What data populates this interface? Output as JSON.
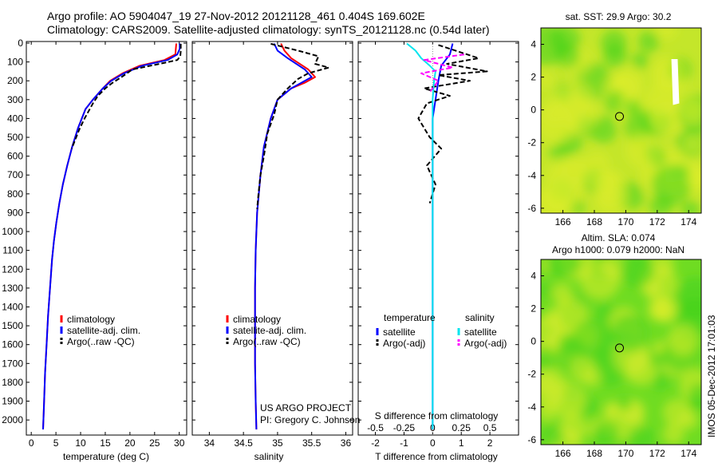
{
  "header": {
    "title_line1": "Argo profile: AO 5904047_19 27-Nov-2012 20121128_461 0.404S 169.602E",
    "title_line2": "Climatology: CARS2009. Satellite-adjusted climatology: synTS_20121128.nc (0.54d later)"
  },
  "colors": {
    "climatology": "#ff0000",
    "satellite_adj": "#0000ff",
    "argo": "#000000",
    "salinity_satellite": "#00e5ee",
    "salinity_argo": "#ff00ff",
    "map_green": "#3fd21c",
    "map_yellow": "#dcec2a"
  },
  "side_stamp": "IMOS 05-Dec-2012 17:01:03",
  "credit": {
    "line1": "US ARGO PROJECT",
    "line2": "PI: Gregory C. Johnson"
  },
  "chart_data": [
    {
      "type": "line",
      "name": "temperature-panel",
      "xlabel": "temperature (deg C)",
      "ylabel": "",
      "xlim": [
        -1,
        31.5
      ],
      "ylim": [
        2080,
        0
      ],
      "xticks": [
        0,
        5,
        10,
        15,
        20,
        25,
        30
      ],
      "yticks": [
        0,
        100,
        200,
        300,
        400,
        500,
        600,
        700,
        800,
        900,
        1000,
        1100,
        1200,
        1300,
        1400,
        1500,
        1600,
        1700,
        1800,
        1900,
        2000
      ],
      "legend": [
        "climatology",
        "satellite-adj. clim.",
        "Argo(..raw -QC)"
      ],
      "legend_position": "lower-center",
      "series": [
        {
          "name": "climatology",
          "color": "#ff0000",
          "style": "solid",
          "points": [
            [
              29.4,
              2
            ],
            [
              29.3,
              30
            ],
            [
              29.2,
              60
            ],
            [
              27,
              90
            ],
            [
              22,
              120
            ],
            [
              18.5,
              160
            ],
            [
              16,
              200
            ],
            [
              14.5,
              240
            ],
            [
              12.5,
              300
            ],
            [
              11,
              350
            ],
            [
              9.5,
              450
            ],
            [
              8.3,
              550
            ],
            [
              7.3,
              650
            ],
            [
              6.4,
              750
            ],
            [
              5.7,
              850
            ],
            [
              5.1,
              950
            ],
            [
              4.6,
              1050
            ],
            [
              4.2,
              1150
            ],
            [
              3.8,
              1300
            ],
            [
              3.4,
              1450
            ],
            [
              3.1,
              1600
            ],
            [
              2.8,
              1750
            ],
            [
              2.6,
              1900
            ],
            [
              2.4,
              2050
            ]
          ]
        },
        {
          "name": "satellite-adj. clim.",
          "color": "#0000ff",
          "style": "solid",
          "points": [
            [
              30.1,
              2
            ],
            [
              30.1,
              30
            ],
            [
              29.6,
              60
            ],
            [
              27.6,
              90
            ],
            [
              22.5,
              120
            ],
            [
              18.8,
              160
            ],
            [
              16.2,
              200
            ],
            [
              14.5,
              240
            ],
            [
              12.5,
              300
            ],
            [
              11,
              350
            ],
            [
              9.5,
              450
            ],
            [
              8.3,
              550
            ],
            [
              7.3,
              650
            ],
            [
              6.4,
              750
            ],
            [
              5.7,
              850
            ],
            [
              5.1,
              950
            ],
            [
              4.6,
              1050
            ],
            [
              4.2,
              1150
            ],
            [
              3.8,
              1300
            ],
            [
              3.4,
              1450
            ],
            [
              3.1,
              1600
            ],
            [
              2.8,
              1750
            ],
            [
              2.6,
              1900
            ],
            [
              2.4,
              2050
            ]
          ]
        },
        {
          "name": "Argo(..raw -QC)",
          "color": "#000000",
          "style": "dashed",
          "points": [
            [
              30.3,
              4
            ],
            [
              30.3,
              40
            ],
            [
              30.2,
              70
            ],
            [
              29.6,
              90
            ],
            [
              26,
              110
            ],
            [
              20.5,
              140
            ],
            [
              18.3,
              180
            ],
            [
              16.5,
              210
            ],
            [
              15,
              240
            ],
            [
              13.5,
              280
            ],
            [
              12.5,
              320
            ],
            [
              10.8,
              400
            ],
            [
              9.7,
              460
            ],
            [
              8.2,
              560
            ]
          ]
        }
      ]
    },
    {
      "type": "line",
      "name": "salinity-panel",
      "xlabel": "salinity",
      "ylabel": "",
      "xlim": [
        33.75,
        36.1
      ],
      "ylim": [
        2080,
        0
      ],
      "xticks": [
        34,
        34.5,
        35,
        35.5,
        36
      ],
      "legend": [
        "climatology",
        "satellite-adj. clim.",
        "Argo(..raw -QC)"
      ],
      "legend_position": "lower-center",
      "series": [
        {
          "name": "climatology",
          "color": "#ff0000",
          "style": "solid",
          "points": [
            [
              35.05,
              2
            ],
            [
              35.1,
              40
            ],
            [
              35.2,
              80
            ],
            [
              35.45,
              140
            ],
            [
              35.55,
              180
            ],
            [
              35.4,
              210
            ],
            [
              35.2,
              240
            ],
            [
              35.0,
              300
            ],
            [
              34.9,
              400
            ],
            [
              34.8,
              550
            ],
            [
              34.75,
              700
            ],
            [
              34.7,
              900
            ],
            [
              34.68,
              1100
            ],
            [
              34.67,
              1300
            ],
            [
              34.67,
              1500
            ],
            [
              34.67,
              1700
            ],
            [
              34.68,
              1900
            ],
            [
              34.69,
              2050
            ]
          ]
        },
        {
          "name": "satellite-adj. clim.",
          "color": "#0000ff",
          "style": "solid",
          "points": [
            [
              34.95,
              2
            ],
            [
              35.0,
              40
            ],
            [
              35.15,
              80
            ],
            [
              35.4,
              140
            ],
            [
              35.5,
              180
            ],
            [
              35.35,
              210
            ],
            [
              35.2,
              240
            ],
            [
              35.0,
              300
            ],
            [
              34.9,
              400
            ],
            [
              34.8,
              550
            ],
            [
              34.75,
              700
            ],
            [
              34.7,
              900
            ],
            [
              34.68,
              1100
            ],
            [
              34.67,
              1300
            ],
            [
              34.67,
              1500
            ],
            [
              34.67,
              1700
            ],
            [
              34.68,
              1900
            ],
            [
              34.69,
              2050
            ]
          ]
        },
        {
          "name": "Argo(..raw -QC)",
          "color": "#000000",
          "style": "dashed",
          "points": [
            [
              34.9,
              4
            ],
            [
              35.3,
              40
            ],
            [
              35.6,
              70
            ],
            [
              35.55,
              110
            ],
            [
              35.75,
              130
            ],
            [
              35.45,
              160
            ],
            [
              35.3,
              190
            ],
            [
              35.15,
              240
            ],
            [
              35.0,
              300
            ],
            [
              34.95,
              380
            ],
            [
              34.85,
              480
            ],
            [
              34.8,
              600
            ],
            [
              34.75,
              700
            ],
            [
              34.72,
              800
            ],
            [
              34.7,
              880
            ]
          ]
        }
      ]
    },
    {
      "type": "line",
      "name": "difference-panel",
      "xlabel": "T difference from climatology",
      "xlabel_top": "S difference from climatology",
      "ylabel": "",
      "xlim": [
        -2.6,
        3.0
      ],
      "ylim": [
        2080,
        0
      ],
      "xticks": [
        -2,
        -1,
        0,
        1,
        2
      ],
      "xticks_s": [
        -0.5,
        -0.25,
        0,
        0.25,
        0.5
      ],
      "legend_headers": [
        "temperature",
        "salinity"
      ],
      "legend": [
        "satellite",
        "Argo(-adj)",
        "satellite",
        "Argo(-adj)"
      ],
      "legend_position": "lower-center",
      "series": [
        {
          "name": "satellite",
          "group": "temperature",
          "color": "#0000ff",
          "style": "solid",
          "points": [
            [
              0.7,
              2
            ],
            [
              0.6,
              60
            ],
            [
              0.3,
              120
            ],
            [
              0.2,
              200
            ],
            [
              0.1,
              300
            ],
            [
              0,
              400
            ],
            [
              0,
              600
            ],
            [
              0,
              900
            ],
            [
              0,
              1300
            ],
            [
              0,
              1700
            ],
            [
              0,
              2050
            ]
          ]
        },
        {
          "name": "Argo(-adj)",
          "group": "temperature",
          "color": "#000000",
          "style": "dashed",
          "points": [
            [
              0.2,
              10
            ],
            [
              0.8,
              40
            ],
            [
              1.6,
              80
            ],
            [
              0.5,
              110
            ],
            [
              1.9,
              150
            ],
            [
              0.2,
              170
            ],
            [
              1.3,
              200
            ],
            [
              -0.3,
              240
            ],
            [
              0.6,
              280
            ],
            [
              -0.2,
              320
            ],
            [
              -0.5,
              400
            ],
            [
              -0.1,
              500
            ],
            [
              0.3,
              560
            ],
            [
              -0.2,
              650
            ],
            [
              0.1,
              750
            ],
            [
              -0.1,
              850
            ]
          ]
        },
        {
          "name": "satellite",
          "group": "salinity",
          "color": "#00e5ee",
          "style": "solid",
          "points": [
            [
              -0.9,
              2
            ],
            [
              -0.6,
              40
            ],
            [
              -0.4,
              80
            ],
            [
              -0.1,
              120
            ],
            [
              0.1,
              150
            ],
            [
              0.05,
              200
            ],
            [
              0,
              300
            ],
            [
              0,
              500
            ],
            [
              0,
              900
            ],
            [
              0,
              1300
            ],
            [
              0,
              1700
            ],
            [
              0,
              2050
            ]
          ]
        },
        {
          "name": "Argo(-adj)",
          "group": "salinity",
          "color": "#ff00ff",
          "style": "dashed",
          "points": [
            [
              1.1,
              60
            ],
            [
              -0.3,
              90
            ],
            [
              0.7,
              130
            ],
            [
              -0.4,
              160
            ],
            [
              0.2,
              200
            ],
            [
              -0.1,
              260
            ]
          ]
        }
      ]
    },
    {
      "type": "heatmap",
      "name": "sst-map",
      "title": "sat. SST: 29.9  Argo: 30.2",
      "xlim": [
        164.6,
        174.8
      ],
      "ylim": [
        -6.3,
        5.0
      ],
      "xticks": [
        166,
        168,
        170,
        172,
        174
      ],
      "yticks": [
        -6,
        -4,
        -2,
        0,
        2,
        4
      ],
      "marker": [
        169.6,
        -0.4
      ]
    },
    {
      "type": "heatmap",
      "name": "sla-map",
      "title": "Altim. SLA: 0.074",
      "subtitle": "Argo h1000: 0.079  h2000: NaN",
      "xlim": [
        164.6,
        174.8
      ],
      "ylim": [
        -6.3,
        5.0
      ],
      "xticks": [
        166,
        168,
        170,
        172,
        174
      ],
      "yticks": [
        -6,
        -4,
        -2,
        0,
        2,
        4
      ],
      "marker": [
        169.6,
        -0.4
      ]
    }
  ]
}
